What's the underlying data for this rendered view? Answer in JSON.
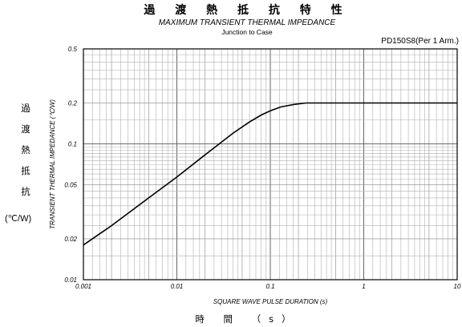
{
  "title_jp": "過 渡 熱 抵 抗 特 性",
  "title_en": "MAXIMUM TRANSIENT THERMAL IMPEDANCE",
  "subtitle": "Junction to Case",
  "part_label": "PD150S8(Per 1 Arm.)",
  "ylabel_jp_chars": [
    "過",
    "渡",
    "熱",
    "抵",
    "抗"
  ],
  "ylabel_jp_unit": "(℃/W)",
  "xlabel_jp": "時 間 （s）",
  "chart_data": {
    "type": "line",
    "title": "MAXIMUM TRANSIENT THERMAL IMPEDANCE",
    "subtitle": "Junction to Case",
    "xlabel": "SQUARE WAVE PULSE DURATION (s)",
    "ylabel": "TRANSIENT THERMAL IMPEDANCE (℃/W)",
    "x_scale": "log",
    "y_scale": "log",
    "xlim": [
      0.001,
      10
    ],
    "ylim": [
      0.01,
      0.5
    ],
    "grid": true,
    "x_ticks": [
      {
        "value": 0.001,
        "label": "0.001"
      },
      {
        "value": 0.01,
        "label": "0.01"
      },
      {
        "value": 0.1,
        "label": "0.1"
      },
      {
        "value": 1,
        "label": "1"
      },
      {
        "value": 10,
        "label": "10"
      }
    ],
    "y_ticks": [
      {
        "value": 0.01,
        "label": "0.01"
      },
      {
        "value": 0.02,
        "label": "0.02"
      },
      {
        "value": 0.05,
        "label": "0.05"
      },
      {
        "value": 0.1,
        "label": "0.1"
      },
      {
        "value": 0.2,
        "label": "0.2"
      },
      {
        "value": 0.5,
        "label": "0.5"
      }
    ],
    "series": [
      {
        "color": "#000000",
        "x": [
          0.001,
          0.002,
          0.005,
          0.01,
          0.02,
          0.04,
          0.06,
          0.08,
          0.1,
          0.13,
          0.18,
          0.24,
          0.3,
          1,
          10
        ],
        "y": [
          0.018,
          0.025,
          0.04,
          0.057,
          0.083,
          0.12,
          0.145,
          0.163,
          0.175,
          0.187,
          0.195,
          0.2,
          0.2,
          0.2,
          0.2
        ]
      }
    ]
  }
}
